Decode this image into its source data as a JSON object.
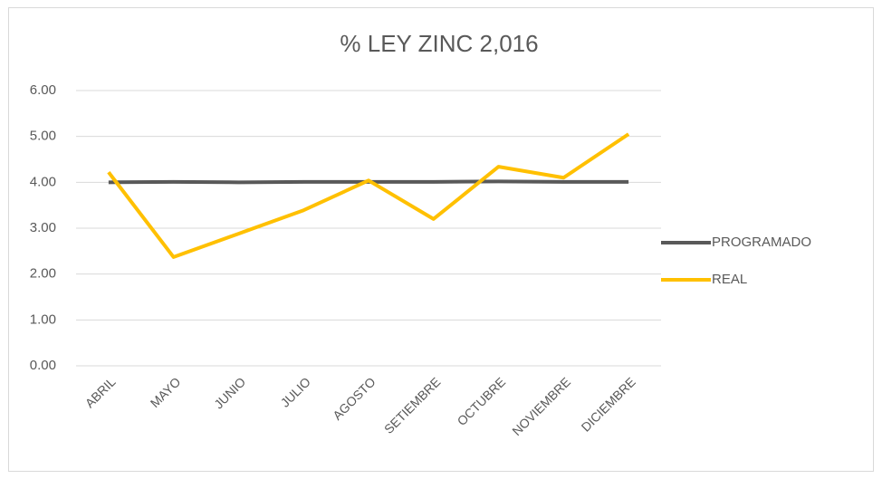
{
  "chart_data": {
    "type": "line",
    "title": "% LEY ZINC 2,016",
    "categories": [
      "ABRIL",
      "MAYO",
      "JUNIO",
      "JULIO",
      "AGOSTO",
      "SETIEMBRE",
      "OCTUBRE",
      "NOVIEMBRE",
      "DICIEMBRE"
    ],
    "series": [
      {
        "name": "PROGRAMADO",
        "color": "#595959",
        "values": [
          4.0,
          4.01,
          4.0,
          4.01,
          4.01,
          4.01,
          4.02,
          4.01,
          4.01
        ]
      },
      {
        "name": "REAL",
        "color": "#ffc000",
        "values": [
          4.22,
          2.37,
          2.88,
          3.39,
          4.04,
          3.2,
          4.34,
          4.1,
          5.05
        ]
      }
    ],
    "ylim": [
      0,
      6
    ],
    "yticks": [
      {
        "value": 0,
        "label": "0.00"
      },
      {
        "value": 1,
        "label": "1.00"
      },
      {
        "value": 2,
        "label": "2.00"
      },
      {
        "value": 3,
        "label": "3.00"
      },
      {
        "value": 4,
        "label": "4.00"
      },
      {
        "value": 5,
        "label": "5.00"
      },
      {
        "value": 6,
        "label": "6.00"
      }
    ],
    "grid": true,
    "legend": "right"
  }
}
